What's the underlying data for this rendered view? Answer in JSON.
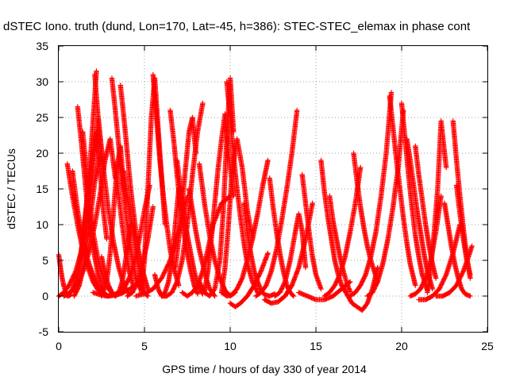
{
  "chart_data": {
    "type": "scatter",
    "title": "dSTEC Iono. truth (dund, Lon=170, Lat=-45, h=386): STEC-STEC_elemax in phase cont",
    "xlabel": "GPS time / hours of day 330 of year 2014",
    "ylabel": "dSTEC  / TECUs",
    "xlim": [
      0,
      25
    ],
    "ylim": [
      -5,
      35
    ],
    "xticks": [
      0,
      5,
      10,
      15,
      20,
      25
    ],
    "yticks": [
      -5,
      0,
      5,
      10,
      15,
      20,
      25,
      30,
      35
    ],
    "grid": true,
    "legend": "none",
    "marker": "plus",
    "color": "#ff0000",
    "series": [
      {
        "x": [
          0.0,
          0.1,
          0.2,
          0.3,
          0.4,
          0.5,
          0.6,
          0.7
        ],
        "y": [
          5.8,
          4.0,
          2.5,
          1.4,
          0.6,
          0.2,
          0.0,
          0.2
        ]
      },
      {
        "x": [
          0.0,
          0.3,
          0.6,
          1.0,
          1.4,
          1.8,
          2.1,
          2.3,
          2.6
        ],
        "y": [
          0.0,
          0.5,
          1.5,
          3.5,
          7.0,
          13.0,
          20.0,
          25.0,
          18.0
        ]
      },
      {
        "x": [
          0.3,
          0.6,
          0.9,
          1.2,
          1.5,
          1.8,
          2.1,
          2.4,
          2.7,
          3.0,
          3.3
        ],
        "y": [
          0.0,
          0.3,
          1.0,
          2.0,
          4.0,
          6.5,
          10.0,
          14.0,
          19.0,
          22.0,
          16.5
        ]
      },
      {
        "x": [
          0.5,
          0.8,
          1.1,
          1.4,
          1.7,
          2.0,
          2.3,
          2.6,
          2.9,
          3.2,
          3.5
        ],
        "y": [
          18.5,
          14.0,
          10.0,
          6.5,
          4.0,
          2.0,
          0.8,
          0.2,
          0.0,
          0.2,
          0.5
        ]
      },
      {
        "x": [
          0.5,
          0.8,
          1.1,
          1.3,
          1.5,
          1.7,
          1.9,
          2.1,
          2.2
        ],
        "y": [
          0.0,
          1.0,
          3.0,
          6.0,
          10.0,
          15.0,
          21.0,
          28.0,
          31.5
        ]
      },
      {
        "x": [
          0.8,
          1.1,
          1.4,
          1.7,
          2.0,
          2.3,
          2.6,
          2.9,
          3.2
        ],
        "y": [
          17.5,
          12.0,
          8.0,
          5.0,
          3.0,
          1.5,
          0.5,
          0.0,
          0.3
        ]
      },
      {
        "x": [
          0.9,
          1.2,
          1.5,
          1.8,
          2.1,
          2.4
        ],
        "y": [
          0.0,
          1.5,
          5.0,
          10.0,
          16.0,
          19.5
        ]
      },
      {
        "x": [
          1.0,
          1.2,
          1.4,
          1.6,
          1.8,
          2.0,
          2.2,
          2.4,
          2.6,
          2.8
        ],
        "y": [
          1.0,
          4.0,
          8.0,
          12.0,
          16.0,
          20.0,
          23.0,
          18.0,
          12.0,
          8.0
        ]
      },
      {
        "x": [
          1.1,
          1.3,
          1.5,
          1.7,
          1.9,
          2.1,
          2.3,
          2.6
        ],
        "y": [
          26.5,
          22.0,
          17.0,
          12.0,
          8.5,
          5.5,
          3.0,
          1.0
        ]
      },
      {
        "x": [
          1.4,
          1.6,
          1.8,
          2.0,
          2.3,
          2.6,
          2.9,
          3.2
        ],
        "y": [
          23.0,
          18.0,
          13.0,
          9.0,
          5.0,
          2.5,
          1.0,
          0.2
        ]
      },
      {
        "x": [
          2.1,
          2.3,
          2.6,
          2.9,
          3.2,
          3.5,
          3.8,
          4.1
        ],
        "y": [
          31.0,
          25.0,
          18.0,
          12.0,
          7.5,
          4.0,
          1.5,
          0.3
        ]
      },
      {
        "x": [
          2.0,
          2.4,
          2.8,
          3.2,
          3.6,
          4.0,
          4.5,
          5.0
        ],
        "y": [
          0.5,
          0.2,
          0.0,
          0.1,
          0.3,
          0.8,
          1.5,
          2.5
        ]
      },
      {
        "x": [
          2.5,
          2.7,
          2.9,
          3.1,
          3.3,
          3.5,
          3.7,
          3.9,
          4.2
        ],
        "y": [
          5.5,
          3.0,
          1.5,
          0.5,
          0.0,
          0.5,
          2.0,
          5.0,
          10.0
        ]
      },
      {
        "x": [
          2.5,
          2.8,
          3.0,
          3.2,
          3.4,
          3.6,
          3.8
        ],
        "y": [
          0.0,
          2.0,
          6.0,
          12.0,
          18.0,
          21.0,
          15.0
        ]
      },
      {
        "x": [
          3.1,
          3.3,
          3.5,
          3.7,
          3.9,
          4.1,
          4.3,
          4.5,
          4.8,
          5.2
        ],
        "y": [
          30.5,
          26.0,
          21.0,
          16.0,
          12.0,
          8.0,
          5.0,
          2.5,
          0.8,
          0.0
        ]
      },
      {
        "x": [
          3.3,
          3.5,
          3.7,
          3.9,
          4.1,
          4.4
        ],
        "y": [
          18.5,
          14.0,
          10.0,
          6.5,
          3.5,
          1.0
        ]
      },
      {
        "x": [
          3.6,
          3.8,
          4.0,
          4.2,
          4.4,
          4.6,
          4.9,
          5.2
        ],
        "y": [
          29.5,
          25.0,
          20.0,
          15.0,
          11.0,
          7.0,
          3.5,
          1.0
        ]
      },
      {
        "x": [
          3.3,
          3.6,
          3.9,
          4.2,
          4.5,
          4.7,
          5.0,
          5.3
        ],
        "y": [
          0.0,
          0.5,
          1.5,
          3.0,
          5.5,
          8.0,
          12.0,
          15.5
        ]
      },
      {
        "x": [
          3.8,
          4.0,
          4.2,
          4.4,
          4.6,
          4.8,
          5.0
        ],
        "y": [
          17.5,
          14.0,
          11.0,
          8.0,
          5.0,
          2.5,
          0.8
        ]
      },
      {
        "x": [
          4.0,
          4.3,
          4.6,
          4.9,
          5.2,
          5.5
        ],
        "y": [
          0.0,
          0.5,
          2.0,
          4.5,
          8.0,
          12.5
        ]
      },
      {
        "x": [
          4.8,
          5.0,
          5.2,
          5.4,
          5.6,
          5.9,
          6.2
        ],
        "y": [
          0.3,
          5.0,
          15.0,
          25.0,
          30.5,
          20.0,
          10.0
        ]
      },
      {
        "x": [
          5.5,
          5.7,
          5.9,
          6.1,
          6.3,
          6.5,
          6.7,
          7.0
        ],
        "y": [
          31.0,
          25.0,
          19.0,
          14.0,
          10.0,
          6.5,
          4.0,
          1.5
        ]
      },
      {
        "x": [
          4.5,
          5.0,
          5.5,
          6.0,
          6.5,
          7.0,
          7.5
        ],
        "y": [
          0.0,
          0.3,
          1.0,
          2.5,
          5.0,
          9.0,
          14.0
        ]
      },
      {
        "x": [
          5.6,
          5.8,
          6.0,
          6.2,
          6.4,
          6.6,
          6.8,
          7.0
        ],
        "y": [
          3.0,
          1.0,
          0.0,
          0.5,
          2.0,
          5.0,
          10.0,
          15.0
        ]
      },
      {
        "x": [
          6.0,
          6.3,
          6.6,
          6.9,
          7.2,
          7.5,
          7.8,
          8.1,
          8.4
        ],
        "y": [
          0.0,
          0.0,
          0.5,
          2.0,
          5.0,
          10.0,
          17.0,
          23.0,
          27.0
        ]
      },
      {
        "x": [
          6.5,
          6.7,
          6.9,
          7.1,
          7.3,
          7.5,
          7.7,
          7.9,
          8.1
        ],
        "y": [
          26.0,
          22.0,
          17.0,
          12.5,
          9.0,
          6.0,
          3.5,
          1.5,
          0.3
        ]
      },
      {
        "x": [
          6.9,
          7.1,
          7.3,
          7.5,
          7.7,
          7.9,
          8.1,
          8.4
        ],
        "y": [
          19.0,
          15.0,
          11.5,
          8.5,
          6.0,
          3.5,
          1.5,
          0.3
        ]
      },
      {
        "x": [
          6.8,
          7.0,
          7.2,
          7.4,
          7.6,
          7.8,
          8.0
        ],
        "y": [
          4.0,
          8.0,
          13.0,
          18.0,
          23.0,
          25.0,
          20.0
        ]
      },
      {
        "x": [
          7.2,
          7.5,
          7.8,
          8.1,
          8.4,
          8.7,
          9.0,
          9.5,
          10.0
        ],
        "y": [
          0.5,
          0.0,
          0.5,
          1.5,
          3.5,
          6.5,
          10.0,
          13.0,
          14.0
        ]
      },
      {
        "x": [
          7.6,
          7.8,
          8.0,
          8.2,
          8.4,
          8.6,
          8.8,
          9.1
        ],
        "y": [
          15.0,
          12.0,
          9.0,
          6.5,
          4.5,
          2.5,
          1.0,
          0.0
        ]
      },
      {
        "x": [
          8.2,
          8.5,
          8.8,
          9.1,
          9.4,
          9.7,
          10.0,
          10.3
        ],
        "y": [
          18.5,
          13.0,
          8.5,
          5.0,
          2.5,
          0.8,
          0.0,
          0.5
        ]
      },
      {
        "x": [
          8.2,
          8.5,
          8.8,
          9.1,
          9.4,
          9.6,
          9.8,
          10.0,
          10.2
        ],
        "y": [
          2.0,
          0.5,
          0.0,
          1.0,
          5.0,
          12.0,
          22.0,
          30.5,
          23.0
        ]
      },
      {
        "x": [
          8.5,
          8.7,
          8.9,
          9.1,
          9.3,
          9.5,
          9.7,
          9.9,
          10.2
        ],
        "y": [
          0.5,
          3.5,
          8.0,
          13.0,
          18.0,
          22.0,
          25.5,
          20.0,
          14.0
        ]
      },
      {
        "x": [
          9.5,
          9.7,
          9.9,
          10.1,
          10.4,
          10.7,
          11.0,
          11.3
        ],
        "y": [
          0.5,
          4.0,
          10.0,
          17.0,
          22.0,
          18.0,
          12.0,
          8.0
        ]
      },
      {
        "x": [
          9.8,
          10.0,
          10.2,
          10.4,
          10.6,
          10.8,
          11.0,
          11.3,
          11.6
        ],
        "y": [
          30.0,
          25.0,
          19.5,
          15.0,
          11.0,
          7.5,
          4.5,
          2.0,
          0.5
        ]
      },
      {
        "x": [
          10.0,
          10.3,
          10.6,
          11.0,
          11.4,
          11.8,
          12.2
        ],
        "y": [
          -1.0,
          -1.5,
          -1.0,
          0.0,
          1.5,
          3.5,
          6.0
        ]
      },
      {
        "x": [
          9.5,
          9.8,
          10.1,
          10.4,
          10.7,
          11.0,
          11.3,
          11.6,
          11.9,
          12.2
        ],
        "y": [
          0.5,
          0.0,
          0.2,
          1.0,
          2.5,
          5.0,
          8.0,
          11.5,
          15.5,
          19.0
        ]
      },
      {
        "x": [
          10.8,
          11.0,
          11.2,
          11.4,
          11.6,
          11.8,
          12.0,
          12.3,
          12.6
        ],
        "y": [
          13.0,
          9.0,
          6.0,
          3.5,
          2.0,
          0.8,
          0.2,
          0.0,
          0.3
        ]
      },
      {
        "x": [
          11.5,
          11.8,
          12.1,
          12.4,
          12.7,
          13.0,
          13.3,
          13.6,
          13.9
        ],
        "y": [
          0.0,
          0.5,
          1.5,
          3.5,
          6.5,
          10.5,
          15.0,
          20.0,
          26.0
        ]
      },
      {
        "x": [
          12.3,
          12.5,
          12.7,
          12.9,
          13.1,
          13.3,
          13.5,
          13.7
        ],
        "y": [
          16.5,
          12.5,
          9.0,
          6.0,
          3.5,
          1.5,
          0.5,
          0.0
        ]
      },
      {
        "x": [
          12.0,
          12.4,
          12.8,
          13.2,
          13.6,
          14.0,
          14.4,
          14.8
        ],
        "y": [
          -0.5,
          -1.0,
          -0.8,
          0.0,
          1.5,
          4.0,
          8.0,
          13.0
        ]
      },
      {
        "x": [
          12.6,
          12.9,
          13.2,
          13.5,
          13.8,
          14.0,
          14.2,
          14.4
        ],
        "y": [
          0.0,
          0.5,
          2.0,
          5.0,
          9.0,
          11.5,
          9.0,
          4.0
        ]
      },
      {
        "x": [
          14.2,
          14.4,
          14.6,
          14.8,
          15.0,
          15.3
        ],
        "y": [
          17.0,
          13.0,
          9.0,
          5.5,
          3.0,
          1.0
        ]
      },
      {
        "x": [
          14.0,
          14.5,
          15.0,
          15.5,
          16.0,
          16.5,
          17.0
        ],
        "y": [
          0.5,
          0.0,
          -0.5,
          -0.5,
          0.0,
          1.0,
          2.0
        ]
      },
      {
        "x": [
          15.3,
          15.5,
          15.7,
          15.9,
          16.1,
          16.3,
          16.5,
          16.8
        ],
        "y": [
          19.0,
          14.5,
          11.0,
          8.0,
          5.0,
          3.0,
          1.5,
          0.3
        ]
      },
      {
        "x": [
          15.8,
          16.0,
          16.2,
          16.4,
          16.6,
          16.8,
          17.0
        ],
        "y": [
          14.0,
          10.5,
          8.0,
          5.5,
          3.5,
          1.8,
          0.6
        ]
      },
      {
        "x": [
          15.5,
          15.8,
          16.1,
          16.4,
          16.7,
          17.0,
          17.3,
          17.6
        ],
        "y": [
          0.0,
          0.5,
          1.5,
          3.0,
          5.5,
          9.0,
          13.0,
          18.0
        ]
      },
      {
        "x": [
          16.5,
          16.8,
          17.1,
          17.4,
          17.7,
          18.0,
          18.3,
          18.6
        ],
        "y": [
          1.5,
          0.3,
          -1.0,
          -1.5,
          -2.0,
          -1.0,
          1.0,
          4.0
        ]
      },
      {
        "x": [
          17.2,
          17.4,
          17.6,
          17.8,
          18.0,
          18.2,
          18.4,
          18.6
        ],
        "y": [
          20.0,
          16.0,
          12.5,
          9.5,
          7.0,
          5.0,
          3.5,
          2.0
        ]
      },
      {
        "x": [
          17.0,
          17.3,
          17.6,
          17.9,
          18.2,
          18.5,
          18.8,
          19.1,
          19.4
        ],
        "y": [
          0.0,
          0.5,
          1.5,
          3.0,
          5.5,
          9.0,
          14.0,
          20.0,
          28.5
        ]
      },
      {
        "x": [
          18.0,
          18.3,
          18.6,
          18.9,
          19.2,
          19.5,
          19.8,
          20.1
        ],
        "y": [
          0.0,
          0.5,
          2.0,
          4.5,
          8.0,
          12.5,
          18.0,
          26.0
        ]
      },
      {
        "x": [
          19.3,
          19.5,
          19.7,
          19.9,
          20.1,
          20.3,
          20.5,
          20.8
        ],
        "y": [
          28.0,
          23.5,
          19.0,
          15.0,
          11.0,
          7.5,
          4.5,
          1.5
        ]
      },
      {
        "x": [
          20.0,
          20.2,
          20.4,
          20.6,
          20.8,
          21.0,
          21.2,
          21.5
        ],
        "y": [
          27.0,
          22.0,
          17.0,
          12.5,
          8.5,
          5.5,
          3.0,
          0.8
        ]
      },
      {
        "x": [
          20.3,
          20.5,
          20.7,
          20.9,
          21.1,
          21.3,
          21.5,
          21.8
        ],
        "y": [
          22.0,
          19.0,
          15.5,
          12.0,
          9.0,
          6.0,
          3.5,
          1.0
        ]
      },
      {
        "x": [
          20.5,
          20.8,
          21.1,
          21.4,
          21.7,
          22.0,
          22.3
        ],
        "y": [
          0.0,
          0.3,
          1.0,
          2.5,
          5.0,
          9.0,
          14.0
        ]
      },
      {
        "x": [
          20.8,
          21.0,
          21.2,
          21.4,
          21.6,
          21.8,
          22.0
        ],
        "y": [
          21.0,
          17.0,
          13.5,
          10.0,
          7.0,
          4.5,
          2.5
        ]
      },
      {
        "x": [
          21.5,
          21.7,
          21.9,
          22.1,
          22.3,
          22.6
        ],
        "y": [
          0.5,
          4.0,
          9.0,
          15.0,
          24.5,
          18.0
        ]
      },
      {
        "x": [
          21.0,
          21.4,
          21.8,
          22.2,
          22.6,
          23.0,
          23.4
        ],
        "y": [
          -0.5,
          -0.5,
          0.0,
          1.0,
          3.0,
          6.0,
          10.0
        ]
      },
      {
        "x": [
          22.5,
          22.7,
          22.9,
          23.1,
          23.3,
          23.5,
          23.7,
          24.0
        ],
        "y": [
          13.0,
          10.0,
          7.0,
          4.5,
          2.5,
          1.0,
          0.3,
          0.0
        ]
      },
      {
        "x": [
          23.0,
          23.2,
          23.4,
          23.6,
          23.8,
          24.0
        ],
        "y": [
          24.5,
          19.0,
          14.0,
          9.5,
          5.5,
          2.5
        ]
      },
      {
        "x": [
          23.2,
          23.4,
          23.6,
          23.8,
          24.0
        ],
        "y": [
          15.5,
          11.5,
          8.0,
          5.0,
          3.0
        ]
      },
      {
        "x": [
          22.0,
          22.4,
          22.8,
          23.2,
          23.6,
          23.9,
          24.1
        ],
        "y": [
          0.0,
          0.0,
          0.5,
          1.5,
          3.5,
          5.5,
          7.0
        ]
      }
    ]
  }
}
